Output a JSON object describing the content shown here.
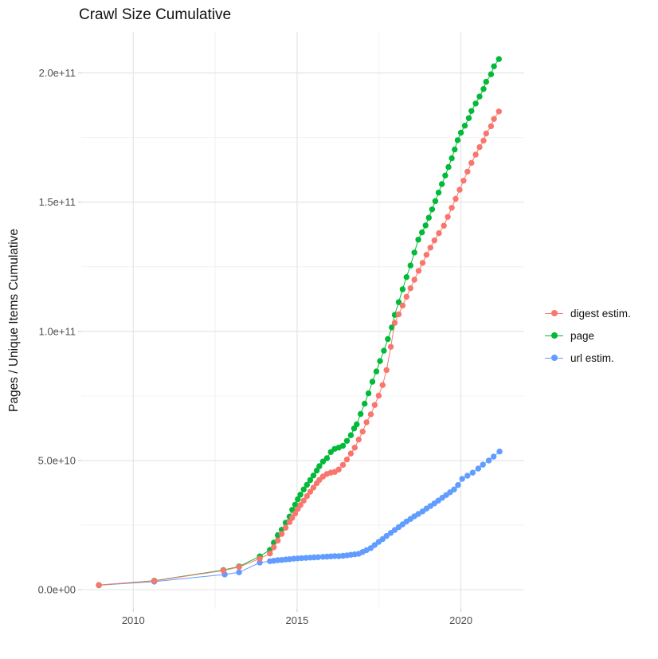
{
  "title": "Crawl Size Cumulative",
  "chart_data": {
    "type": "line",
    "title": "Crawl Size Cumulative",
    "xlabel": "",
    "ylabel": "Pages / Unique Items Cumulative",
    "legend_position": "right",
    "grid": true,
    "x_axis": {
      "major_ticks": [
        2010,
        2015,
        2020
      ],
      "major_labels": [
        "2010",
        "2015",
        "2020"
      ],
      "minor_ticks": [
        2012.5,
        2017.5
      ],
      "range": [
        2008.3,
        2021.9
      ]
    },
    "y_axis": {
      "major_ticks_e9": [
        0,
        50,
        100,
        150,
        200
      ],
      "major_labels": [
        "0.0e+00",
        "5.0e+10",
        "1.0e+11",
        "1.5e+11",
        "2.0e+11"
      ],
      "minor_ticks_e9": [
        25,
        75,
        125,
        175
      ],
      "range_e9": [
        -10,
        215
      ]
    },
    "point_unit": "[decimal_year, cumulative_count_in_billions]",
    "series": [
      {
        "name": "digest estim.",
        "color": "#F8766D",
        "points": [
          [
            2008.95,
            1.8
          ],
          [
            2010.64,
            3.4
          ],
          [
            2012.75,
            7.4
          ],
          [
            2013.23,
            8.8
          ],
          [
            2013.86,
            12.0
          ],
          [
            2014.17,
            14.0
          ],
          [
            2014.29,
            16.4
          ],
          [
            2014.41,
            19.0
          ],
          [
            2014.53,
            21.6
          ],
          [
            2014.65,
            24.0
          ],
          [
            2014.77,
            26.2
          ],
          [
            2014.85,
            27.8
          ],
          [
            2014.94,
            29.5
          ],
          [
            2015.02,
            31.2
          ],
          [
            2015.1,
            32.8
          ],
          [
            2015.2,
            34.5
          ],
          [
            2015.3,
            36.2
          ],
          [
            2015.4,
            37.9
          ],
          [
            2015.5,
            39.5
          ],
          [
            2015.6,
            41.2
          ],
          [
            2015.68,
            42.5
          ],
          [
            2015.79,
            43.8
          ],
          [
            2015.91,
            44.8
          ],
          [
            2016.03,
            45.3
          ],
          [
            2016.15,
            45.6
          ],
          [
            2016.27,
            46.5
          ],
          [
            2016.4,
            48.3
          ],
          [
            2016.52,
            50.4
          ],
          [
            2016.64,
            52.7
          ],
          [
            2016.76,
            55.0
          ],
          [
            2016.88,
            58.1
          ],
          [
            2017.0,
            61.2
          ],
          [
            2017.12,
            64.8
          ],
          [
            2017.25,
            67.9
          ],
          [
            2017.37,
            71.5
          ],
          [
            2017.49,
            75.1
          ],
          [
            2017.61,
            79.2
          ],
          [
            2017.73,
            85.0
          ],
          [
            2017.86,
            94.0
          ],
          [
            2017.98,
            103.3
          ],
          [
            2018.1,
            106.6
          ],
          [
            2018.22,
            110.0
          ],
          [
            2018.34,
            113.4
          ],
          [
            2018.46,
            116.7
          ],
          [
            2018.58,
            120.0
          ],
          [
            2018.71,
            123.4
          ],
          [
            2018.83,
            126.5
          ],
          [
            2018.95,
            129.6
          ],
          [
            2019.07,
            132.4
          ],
          [
            2019.19,
            135.2
          ],
          [
            2019.33,
            138.0
          ],
          [
            2019.48,
            140.9
          ],
          [
            2019.6,
            144.3
          ],
          [
            2019.72,
            147.8
          ],
          [
            2019.84,
            151.3
          ],
          [
            2019.96,
            154.8
          ],
          [
            2020.08,
            158.3
          ],
          [
            2020.2,
            161.8
          ],
          [
            2020.32,
            165.2
          ],
          [
            2020.45,
            168.4
          ],
          [
            2020.57,
            171.3
          ],
          [
            2020.69,
            173.8
          ],
          [
            2020.77,
            176.6
          ],
          [
            2020.92,
            179.4
          ],
          [
            2021.01,
            182.2
          ],
          [
            2021.16,
            185.1
          ]
        ]
      },
      {
        "name": "page",
        "color": "#00BA38",
        "points": [
          [
            2008.95,
            1.8
          ],
          [
            2010.64,
            3.5
          ],
          [
            2012.75,
            7.6
          ],
          [
            2013.23,
            9.0
          ],
          [
            2013.86,
            12.9
          ],
          [
            2014.17,
            15.4
          ],
          [
            2014.29,
            18.2
          ],
          [
            2014.41,
            21.1
          ],
          [
            2014.53,
            23.2
          ],
          [
            2014.65,
            25.9
          ],
          [
            2014.77,
            28.3
          ],
          [
            2014.85,
            30.9
          ],
          [
            2014.94,
            32.9
          ],
          [
            2015.02,
            35.0
          ],
          [
            2015.1,
            36.8
          ],
          [
            2015.2,
            38.8
          ],
          [
            2015.3,
            40.6
          ],
          [
            2015.4,
            42.4
          ],
          [
            2015.5,
            44.2
          ],
          [
            2015.6,
            46.1
          ],
          [
            2015.68,
            47.8
          ],
          [
            2015.79,
            49.6
          ],
          [
            2015.91,
            50.9
          ],
          [
            2016.03,
            53.3
          ],
          [
            2016.15,
            54.5
          ],
          [
            2016.27,
            55.0
          ],
          [
            2016.4,
            55.7
          ],
          [
            2016.52,
            57.6
          ],
          [
            2016.64,
            59.8
          ],
          [
            2016.74,
            62.4
          ],
          [
            2016.82,
            64.0
          ],
          [
            2016.94,
            68.0
          ],
          [
            2017.06,
            72.0
          ],
          [
            2017.18,
            76.0
          ],
          [
            2017.3,
            80.5
          ],
          [
            2017.42,
            84.5
          ],
          [
            2017.53,
            88.5
          ],
          [
            2017.65,
            92.5
          ],
          [
            2017.77,
            97.0
          ],
          [
            2017.89,
            101.5
          ],
          [
            2017.98,
            106.4
          ],
          [
            2018.1,
            111.3
          ],
          [
            2018.22,
            116.3
          ],
          [
            2018.34,
            121.0
          ],
          [
            2018.46,
            125.5
          ],
          [
            2018.58,
            130.5
          ],
          [
            2018.7,
            135.5
          ],
          [
            2018.81,
            138.3
          ],
          [
            2018.92,
            141.0
          ],
          [
            2019.02,
            144.0
          ],
          [
            2019.12,
            147.2
          ],
          [
            2019.22,
            150.4
          ],
          [
            2019.32,
            153.7
          ],
          [
            2019.42,
            157.0
          ],
          [
            2019.52,
            160.3
          ],
          [
            2019.62,
            163.6
          ],
          [
            2019.72,
            167.0
          ],
          [
            2019.81,
            170.4
          ],
          [
            2019.9,
            174.0
          ],
          [
            2020.0,
            176.9
          ],
          [
            2020.12,
            179.6
          ],
          [
            2020.24,
            182.5
          ],
          [
            2020.32,
            185.3
          ],
          [
            2020.45,
            188.2
          ],
          [
            2020.57,
            190.9
          ],
          [
            2020.69,
            193.8
          ],
          [
            2020.77,
            196.6
          ],
          [
            2020.92,
            199.5
          ],
          [
            2021.01,
            202.6
          ],
          [
            2021.16,
            205.4
          ]
        ]
      },
      {
        "name": "url estim.",
        "color": "#619CFF",
        "points": [
          [
            2008.95,
            1.7
          ],
          [
            2010.64,
            3.1
          ],
          [
            2012.79,
            5.9
          ],
          [
            2013.23,
            6.7
          ],
          [
            2013.86,
            10.5
          ],
          [
            2014.17,
            11.0
          ],
          [
            2014.29,
            11.2
          ],
          [
            2014.41,
            11.4
          ],
          [
            2014.53,
            11.5
          ],
          [
            2014.65,
            11.7
          ],
          [
            2014.77,
            11.8
          ],
          [
            2014.9,
            12.0
          ],
          [
            2015.02,
            12.1
          ],
          [
            2015.14,
            12.2
          ],
          [
            2015.27,
            12.3
          ],
          [
            2015.4,
            12.4
          ],
          [
            2015.52,
            12.5
          ],
          [
            2015.64,
            12.6
          ],
          [
            2015.79,
            12.7
          ],
          [
            2015.91,
            12.8
          ],
          [
            2016.03,
            12.9
          ],
          [
            2016.15,
            13.0
          ],
          [
            2016.27,
            13.0
          ],
          [
            2016.4,
            13.1
          ],
          [
            2016.52,
            13.3
          ],
          [
            2016.64,
            13.5
          ],
          [
            2016.76,
            13.7
          ],
          [
            2016.88,
            13.9
          ],
          [
            2017.0,
            14.6
          ],
          [
            2017.12,
            15.3
          ],
          [
            2017.25,
            16.1
          ],
          [
            2017.37,
            17.3
          ],
          [
            2017.49,
            18.5
          ],
          [
            2017.61,
            19.6
          ],
          [
            2017.73,
            20.8
          ],
          [
            2017.86,
            22.0
          ],
          [
            2017.98,
            23.1
          ],
          [
            2018.1,
            24.2
          ],
          [
            2018.22,
            25.3
          ],
          [
            2018.34,
            26.4
          ],
          [
            2018.46,
            27.4
          ],
          [
            2018.58,
            28.4
          ],
          [
            2018.7,
            29.3
          ],
          [
            2018.83,
            30.3
          ],
          [
            2018.95,
            31.4
          ],
          [
            2019.07,
            32.4
          ],
          [
            2019.19,
            33.4
          ],
          [
            2019.31,
            34.5
          ],
          [
            2019.43,
            35.6
          ],
          [
            2019.55,
            36.6
          ],
          [
            2019.67,
            37.7
          ],
          [
            2019.79,
            38.8
          ],
          [
            2019.91,
            40.5
          ],
          [
            2020.04,
            42.9
          ],
          [
            2020.2,
            44.1
          ],
          [
            2020.36,
            45.3
          ],
          [
            2020.53,
            46.9
          ],
          [
            2020.67,
            48.4
          ],
          [
            2020.85,
            50.0
          ],
          [
            2021.0,
            51.5
          ],
          [
            2021.18,
            53.5
          ]
        ]
      }
    ],
    "colors": {
      "major_grid": "#e3e3e3",
      "minor_grid": "#f0f0f0",
      "tick_label": "#4d4d4d",
      "text": "#111111"
    }
  }
}
